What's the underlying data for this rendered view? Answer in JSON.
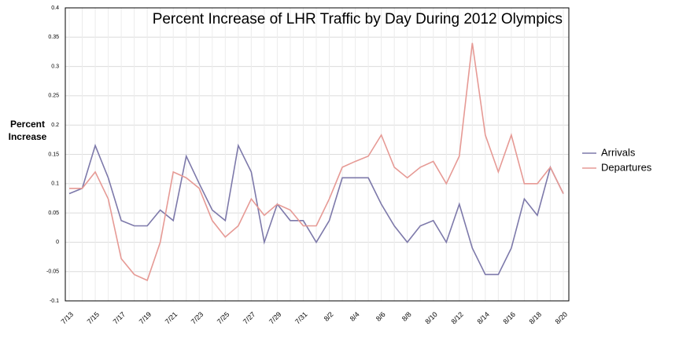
{
  "chart_data": {
    "type": "line",
    "title": "Percent Increase of LHR Traffic by Day During 2012 Olympics",
    "y_label": "Percent Increase",
    "categories": [
      "7/13",
      null,
      "7/15",
      null,
      "7/17",
      null,
      "7/19",
      null,
      "7/21",
      null,
      "7/23",
      null,
      "7/25",
      null,
      "7/27",
      null,
      "7/29",
      null,
      "7/31",
      null,
      "8/2",
      null,
      "8/4",
      null,
      "8/6",
      null,
      "8/8",
      null,
      "8/10",
      null,
      "8/12",
      null,
      "8/14",
      null,
      "8/16",
      null,
      "8/18",
      null,
      "8/20"
    ],
    "series": [
      {
        "name": "Arrivals",
        "color": "#7d79aa",
        "values": [
          0.083,
          0.092,
          0.165,
          0.11,
          0.037,
          0.028,
          0.028,
          0.055,
          0.037,
          0.147,
          0.1,
          0.055,
          0.037,
          0.165,
          0.12,
          0.0,
          0.065,
          0.037,
          0.037,
          0.0,
          0.037,
          0.11,
          0.11,
          0.11,
          0.065,
          0.028,
          0.0,
          0.028,
          0.037,
          0.0,
          0.065,
          -0.01,
          -0.055,
          -0.055,
          -0.01,
          0.074,
          0.046,
          0.128,
          0.083
        ]
      },
      {
        "name": "Departures",
        "color": "#e69a95",
        "values": [
          0.092,
          0.092,
          0.12,
          0.074,
          -0.028,
          -0.055,
          -0.065,
          0.0,
          0.12,
          0.11,
          0.092,
          0.037,
          0.009,
          0.028,
          0.074,
          0.046,
          0.065,
          0.055,
          0.028,
          0.028,
          0.074,
          0.128,
          0.138,
          0.147,
          0.183,
          0.128,
          0.11,
          0.128,
          0.138,
          0.1,
          0.147,
          0.34,
          0.183,
          0.12,
          0.183,
          0.1,
          0.1,
          0.128,
          0.083
        ]
      }
    ],
    "ylim": [
      -0.1,
      0.4
    ],
    "yticks": [
      -0.1,
      -0.05,
      0,
      0.05,
      0.1,
      0.15,
      0.2,
      0.25,
      0.3,
      0.35,
      0.4
    ],
    "grid": true,
    "legend": "right"
  }
}
